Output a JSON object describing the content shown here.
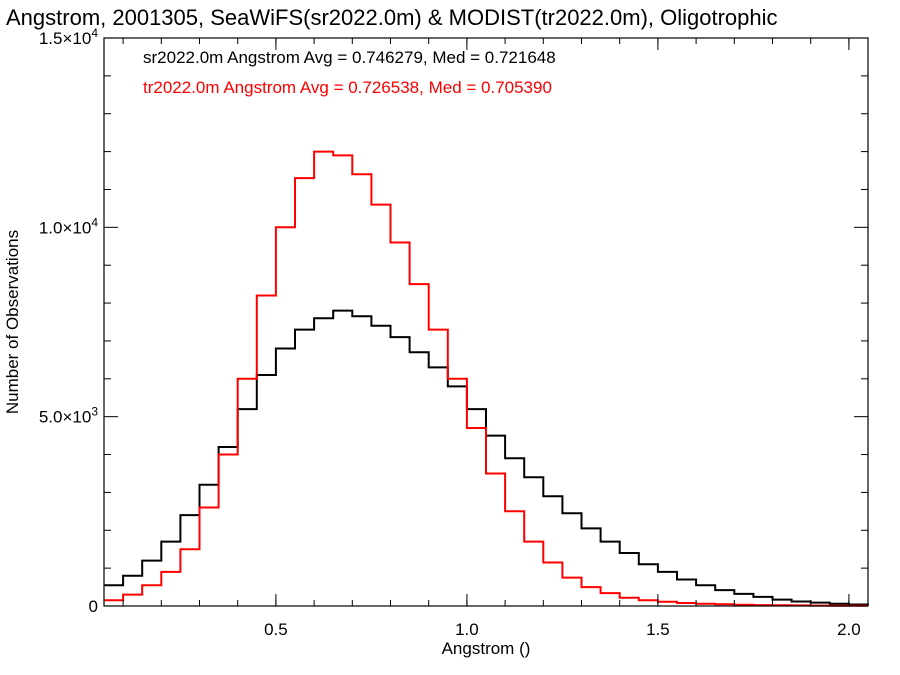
{
  "chart_data": {
    "type": "line",
    "title": "Angstrom, 2001305, SeaWiFS(sr2022.0m) & MODIST(tr2022.0m), Oligotrophic",
    "xlabel": "Angstrom ()",
    "ylabel": "Number of Observations",
    "xlim": [
      0.05,
      2.05
    ],
    "ylim": [
      0,
      15000
    ],
    "x_ticks": [
      {
        "value": 0.5,
        "label": "0.5"
      },
      {
        "value": 1.0,
        "label": "1.0"
      },
      {
        "value": 1.5,
        "label": "1.5"
      },
      {
        "value": 2.0,
        "label": "2.0"
      }
    ],
    "y_ticks": [
      {
        "value": 0,
        "label": "0",
        "exp": ""
      },
      {
        "value": 5000,
        "label": "5.0×10",
        "exp": "3"
      },
      {
        "value": 10000,
        "label": "1.0×10",
        "exp": "4"
      },
      {
        "value": 15000,
        "label": "1.5×10",
        "exp": "4"
      }
    ],
    "annotations": [
      {
        "text": "sr2022.0m Angstrom Avg = 0.746279, Med = 0.721648",
        "color": "#000000"
      },
      {
        "text": "tr2022.0m Angstrom Avg = 0.726538, Med = 0.705390",
        "color": "#ff0000"
      }
    ],
    "series": [
      {
        "color": "#000000",
        "x": [
          0.05,
          0.1,
          0.15,
          0.2,
          0.25,
          0.3,
          0.35,
          0.4,
          0.45,
          0.5,
          0.55,
          0.6,
          0.65,
          0.7,
          0.75,
          0.8,
          0.85,
          0.9,
          0.95,
          1.0,
          1.05,
          1.1,
          1.15,
          1.2,
          1.25,
          1.3,
          1.35,
          1.4,
          1.45,
          1.5,
          1.55,
          1.6,
          1.65,
          1.7,
          1.75,
          1.8,
          1.85,
          1.9,
          1.95,
          2.0,
          2.05
        ],
        "y": [
          550,
          800,
          1200,
          1700,
          2400,
          3200,
          4200,
          5200,
          6100,
          6800,
          7300,
          7600,
          7800,
          7650,
          7400,
          7100,
          6700,
          6300,
          5800,
          5200,
          4500,
          3900,
          3400,
          2900,
          2450,
          2050,
          1700,
          1400,
          1100,
          900,
          700,
          550,
          420,
          320,
          240,
          170,
          120,
          90,
          60,
          40,
          30
        ]
      },
      {
        "color": "#ff0000",
        "x": [
          0.05,
          0.1,
          0.15,
          0.2,
          0.25,
          0.3,
          0.35,
          0.4,
          0.45,
          0.5,
          0.55,
          0.6,
          0.65,
          0.7,
          0.75,
          0.8,
          0.85,
          0.9,
          0.95,
          1.0,
          1.05,
          1.1,
          1.15,
          1.2,
          1.25,
          1.3,
          1.35,
          1.4,
          1.45,
          1.5,
          1.55,
          1.6,
          1.65,
          1.7,
          1.75,
          1.8,
          1.85,
          1.9,
          1.95,
          2.0,
          2.05
        ],
        "y": [
          150,
          300,
          550,
          900,
          1500,
          2600,
          4000,
          6000,
          8200,
          10000,
          11300,
          12000,
          11900,
          11400,
          10600,
          9600,
          8500,
          7300,
          6000,
          4700,
          3500,
          2500,
          1700,
          1150,
          750,
          500,
          340,
          220,
          150,
          110,
          80,
          60,
          45,
          35,
          25,
          20,
          15,
          10,
          8,
          5,
          5
        ]
      }
    ]
  }
}
